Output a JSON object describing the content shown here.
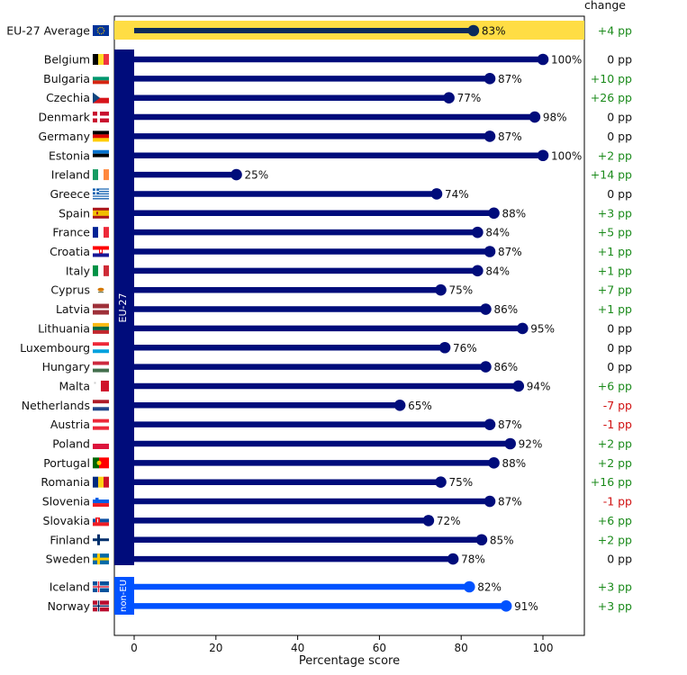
{
  "chart_data": {
    "type": "lollipop",
    "xlabel": "Percentage score",
    "xticks": [
      0,
      20,
      40,
      60,
      80,
      100
    ],
    "xlim": [
      -5,
      110
    ],
    "change_header": "change",
    "group_labels": {
      "eu": "EU-27",
      "non_eu": "non-EU"
    },
    "average": {
      "country": "EU-27 Average",
      "value": 83,
      "value_label": "83%",
      "change": "+4 pp",
      "flag": "eu"
    },
    "eu": [
      {
        "country": "Belgium",
        "value": 100,
        "value_label": "100%",
        "change": "0 pp",
        "flag": "be"
      },
      {
        "country": "Bulgaria",
        "value": 87,
        "value_label": "87%",
        "change": "+10 pp",
        "flag": "bg"
      },
      {
        "country": "Czechia",
        "value": 77,
        "value_label": "77%",
        "change": "+26 pp",
        "flag": "cz"
      },
      {
        "country": "Denmark",
        "value": 98,
        "value_label": "98%",
        "change": "0 pp",
        "flag": "dk"
      },
      {
        "country": "Germany",
        "value": 87,
        "value_label": "87%",
        "change": "0 pp",
        "flag": "de"
      },
      {
        "country": "Estonia",
        "value": 100,
        "value_label": "100%",
        "change": "+2 pp",
        "flag": "ee"
      },
      {
        "country": "Ireland",
        "value": 25,
        "value_label": "25%",
        "change": "+14 pp",
        "flag": "ie"
      },
      {
        "country": "Greece",
        "value": 74,
        "value_label": "74%",
        "change": "0 pp",
        "flag": "gr"
      },
      {
        "country": "Spain",
        "value": 88,
        "value_label": "88%",
        "change": "+3 pp",
        "flag": "es"
      },
      {
        "country": "France",
        "value": 84,
        "value_label": "84%",
        "change": "+5 pp",
        "flag": "fr"
      },
      {
        "country": "Croatia",
        "value": 87,
        "value_label": "87%",
        "change": "+1 pp",
        "flag": "hr"
      },
      {
        "country": "Italy",
        "value": 84,
        "value_label": "84%",
        "change": "+1 pp",
        "flag": "it"
      },
      {
        "country": "Cyprus",
        "value": 75,
        "value_label": "75%",
        "change": "+7 pp",
        "flag": "cy"
      },
      {
        "country": "Latvia",
        "value": 86,
        "value_label": "86%",
        "change": "+1 pp",
        "flag": "lv"
      },
      {
        "country": "Lithuania",
        "value": 95,
        "value_label": "95%",
        "change": "0 pp",
        "flag": "lt"
      },
      {
        "country": "Luxembourg",
        "value": 76,
        "value_label": "76%",
        "change": "0 pp",
        "flag": "lu"
      },
      {
        "country": "Hungary",
        "value": 86,
        "value_label": "86%",
        "change": "0 pp",
        "flag": "hu"
      },
      {
        "country": "Malta",
        "value": 94,
        "value_label": "94%",
        "change": "+6 pp",
        "flag": "mt"
      },
      {
        "country": "Netherlands",
        "value": 65,
        "value_label": "65%",
        "change": "-7 pp",
        "flag": "nl"
      },
      {
        "country": "Austria",
        "value": 87,
        "value_label": "87%",
        "change": "-1 pp",
        "flag": "at"
      },
      {
        "country": "Poland",
        "value": 92,
        "value_label": "92%",
        "change": "+2 pp",
        "flag": "pl"
      },
      {
        "country": "Portugal",
        "value": 88,
        "value_label": "88%",
        "change": "+2 pp",
        "flag": "pt"
      },
      {
        "country": "Romania",
        "value": 75,
        "value_label": "75%",
        "change": "+16 pp",
        "flag": "ro"
      },
      {
        "country": "Slovenia",
        "value": 87,
        "value_label": "87%",
        "change": "-1 pp",
        "flag": "si"
      },
      {
        "country": "Slovakia",
        "value": 72,
        "value_label": "72%",
        "change": "+6 pp",
        "flag": "sk"
      },
      {
        "country": "Finland",
        "value": 85,
        "value_label": "85%",
        "change": "+2 pp",
        "flag": "fi"
      },
      {
        "country": "Sweden",
        "value": 78,
        "value_label": "78%",
        "change": "0 pp",
        "flag": "se"
      }
    ],
    "non_eu": [
      {
        "country": "Iceland",
        "value": 82,
        "value_label": "82%",
        "change": "+3 pp",
        "flag": "is"
      },
      {
        "country": "Norway",
        "value": 91,
        "value_label": "91%",
        "change": "+3 pp",
        "flag": "no"
      }
    ],
    "colors": {
      "eu_bar": "#000c7b",
      "non_eu_bar": "#0052ff",
      "average_bar": "#0b2a5b",
      "average_band": "#ffdd44",
      "positive_change": "#1a8a1a",
      "negative_change": "#d01010",
      "neutral_change": "#111111"
    }
  }
}
